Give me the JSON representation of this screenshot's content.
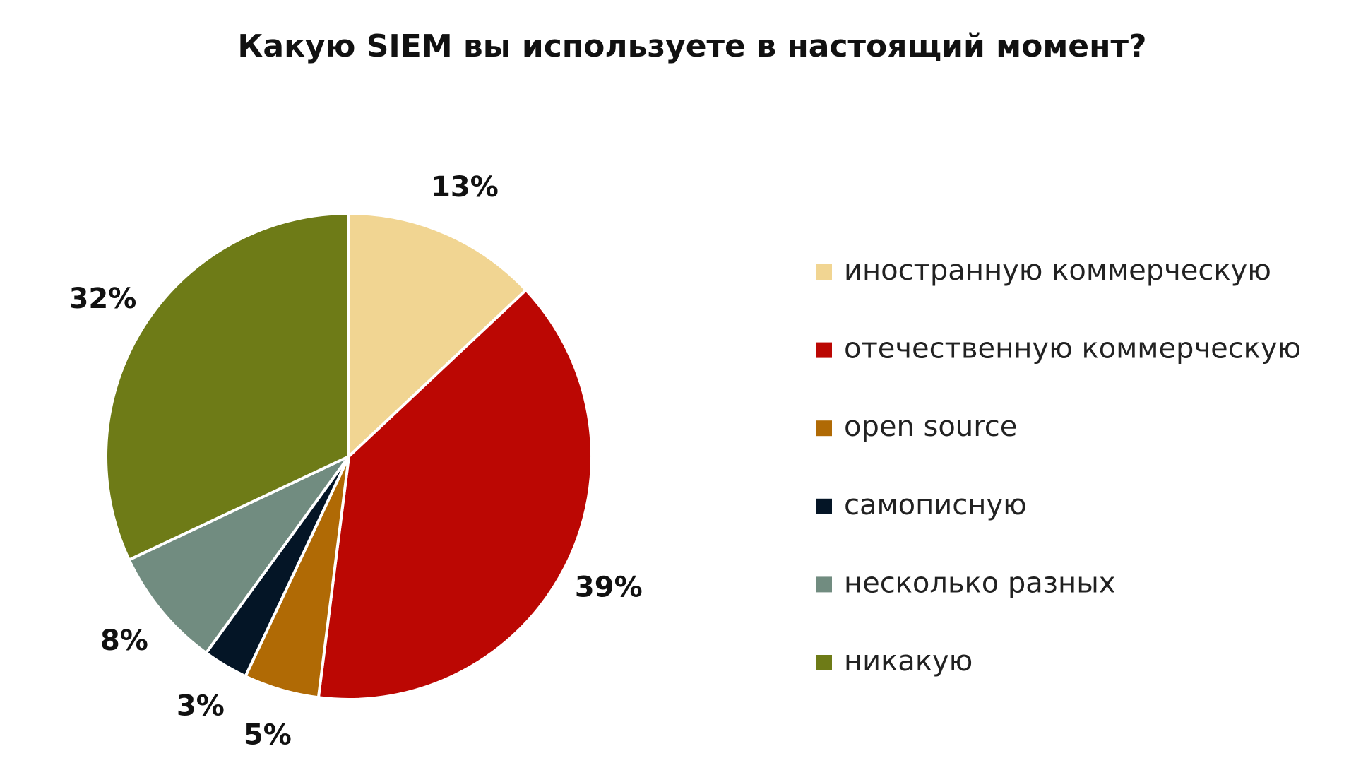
{
  "chart_data": {
    "type": "pie",
    "title": "Какую SIEM вы используете в настоящий момент?",
    "categories": [
      "иностранную коммерческую",
      "отечественную коммерческую",
      "open source",
      "самописную",
      "несколько разных",
      "никакую"
    ],
    "values": [
      13,
      39,
      5,
      3,
      8,
      32
    ],
    "value_labels": [
      "13%",
      "39%",
      "5%",
      "3%",
      "8%",
      "32%"
    ],
    "colors": [
      "#f1d592",
      "#bb0703",
      "#b06a05",
      "#041526",
      "#718c80",
      "#6e7b17"
    ],
    "legend": "right"
  }
}
